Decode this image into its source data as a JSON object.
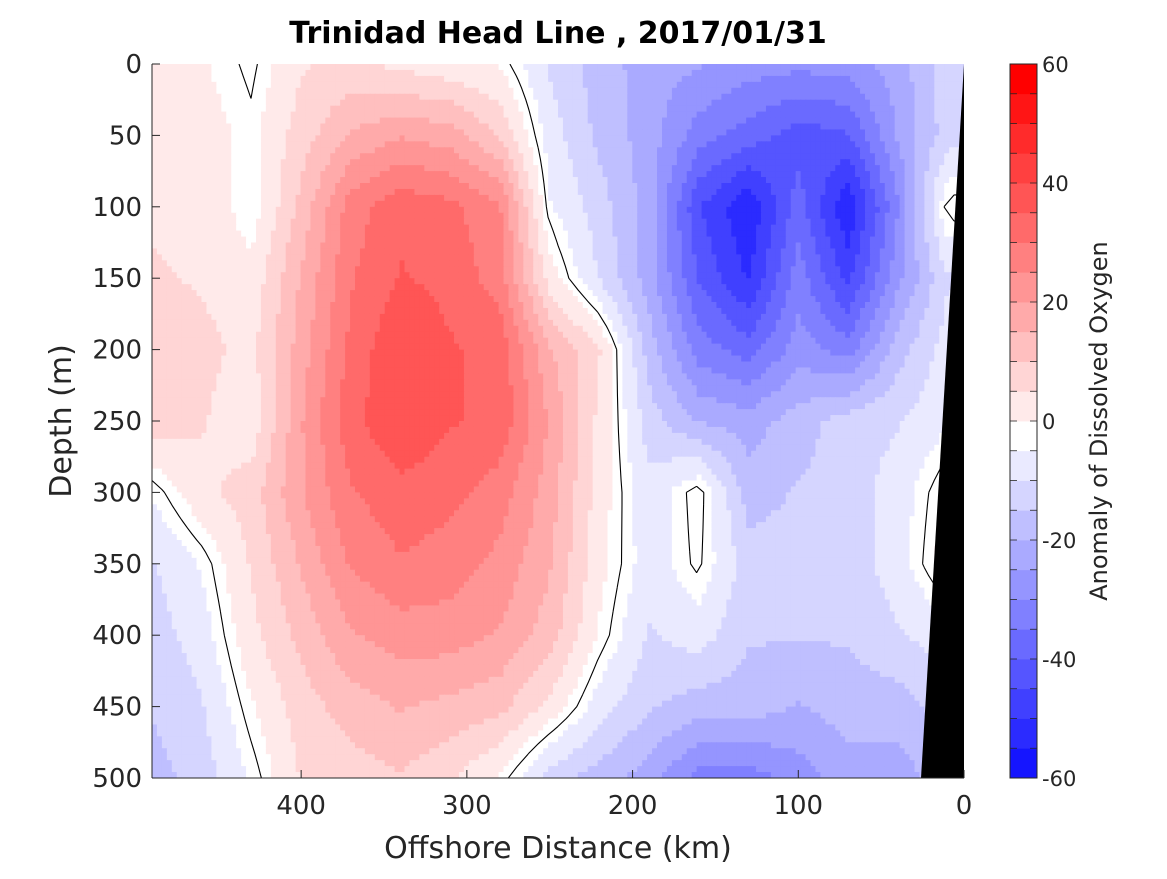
{
  "chart_data": {
    "type": "heatmap",
    "title": "Trinidad Head Line , 2017/01/31",
    "xlabel": "Offshore Distance (km)",
    "ylabel": "Depth (m)",
    "colorbar_label": "Anomaly of Dissolved Oxygen",
    "xlim": [
      490,
      0
    ],
    "x_reversed": true,
    "ylim": [
      0,
      500
    ],
    "y_reversed": true,
    "x_ticks": [
      400,
      300,
      200,
      100,
      0
    ],
    "y_ticks": [
      0,
      50,
      100,
      150,
      200,
      250,
      300,
      350,
      400,
      450,
      500
    ],
    "colorbar_range": [
      -60,
      60
    ],
    "colorbar_ticks": [
      -60,
      -40,
      -20,
      0,
      20,
      40,
      60
    ],
    "colorbar_levels": [
      -60,
      -55,
      -50,
      -45,
      -40,
      -35,
      -30,
      -25,
      -20,
      -15,
      -10,
      -5,
      0,
      5,
      10,
      15,
      20,
      25,
      30,
      35,
      40,
      45,
      50,
      55,
      60
    ],
    "colormap": {
      "negative": "#0000ff",
      "zero": "#ffffff",
      "positive": "#ff0000"
    },
    "grid": false,
    "colorbar_position": "right",
    "bathymetry_color": "#000000",
    "x": [
      490,
      460,
      430,
      400,
      370,
      340,
      310,
      280,
      250,
      220,
      190,
      160,
      130,
      100,
      70,
      40,
      10
    ],
    "y": [
      0,
      50,
      100,
      150,
      200,
      250,
      300,
      350,
      400,
      450,
      500
    ],
    "z": [
      [
        4,
        3,
        -1,
        7,
        9,
        6,
        4,
        2,
        -8,
        -15,
        -20,
        -22,
        -25,
        -26,
        -25,
        -20,
        -10
      ],
      [
        6,
        5,
        1,
        10,
        18,
        22,
        20,
        12,
        -5,
        -14,
        -20,
        -30,
        -35,
        -40,
        -38,
        -22,
        -10
      ],
      [
        7,
        6,
        0,
        14,
        30,
        36,
        34,
        28,
        -2,
        -10,
        -20,
        -42,
        -52,
        -35,
        -52,
        -28,
        2
      ],
      [
        8,
        7,
        4,
        18,
        32,
        38,
        36,
        30,
        5,
        -8,
        -20,
        -38,
        -48,
        -30,
        -44,
        -24,
        -8
      ],
      [
        12,
        9,
        6,
        20,
        34,
        42,
        38,
        36,
        18,
        8,
        -15,
        -30,
        -35,
        -25,
        -30,
        -15,
        -5
      ],
      [
        10,
        8,
        4,
        22,
        36,
        42,
        38,
        36,
        22,
        6,
        -10,
        -18,
        -20,
        -15,
        -10,
        -8,
        -3
      ],
      [
        -2,
        6,
        10,
        22,
        32,
        36,
        34,
        30,
        20,
        5,
        -6,
        2,
        -15,
        -12,
        -10,
        -5,
        3
      ],
      [
        -8,
        -2,
        8,
        18,
        28,
        32,
        30,
        26,
        18,
        4,
        -5,
        1,
        -10,
        -10,
        -10,
        -5,
        5
      ],
      [
        -10,
        -5,
        6,
        14,
        22,
        25,
        25,
        22,
        15,
        2,
        -8,
        -5,
        -12,
        -12,
        -12,
        -8,
        -5
      ],
      [
        -12,
        -8,
        2,
        10,
        15,
        18,
        16,
        14,
        6,
        -5,
        -12,
        -15,
        -15,
        -18,
        -15,
        -15,
        -10
      ],
      [
        -15,
        -10,
        -2,
        8,
        10,
        12,
        8,
        2,
        -10,
        -15,
        -20,
        -30,
        -30,
        -25,
        -20,
        -20,
        -15
      ]
    ]
  }
}
